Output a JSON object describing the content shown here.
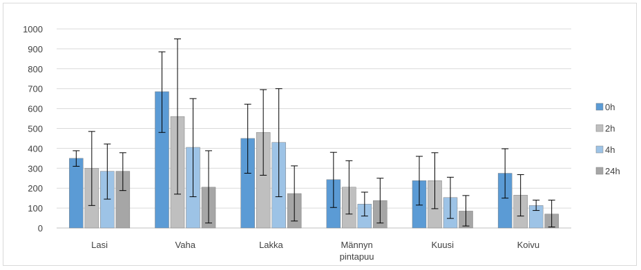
{
  "chart_data": {
    "type": "bar",
    "title": "",
    "xlabel": "",
    "ylabel": "",
    "ylim": [
      0,
      1000
    ],
    "yticks": [
      0,
      100,
      200,
      300,
      400,
      500,
      600,
      700,
      800,
      900,
      1000
    ],
    "grid": true,
    "legend_position": "right",
    "categories": [
      "Lasi",
      "Vaha",
      "Lakka",
      "Männyn pintapuu",
      "Kuusi",
      "Koivu"
    ],
    "series": [
      {
        "name": "0h",
        "color": "#5b9bd5",
        "values": [
          350,
          685,
          450,
          243,
          238,
          275
        ],
        "error_low": [
          310,
          480,
          275,
          103,
          115,
          150
        ],
        "error_high": [
          388,
          885,
          622,
          380,
          360,
          398
        ]
      },
      {
        "name": "2h",
        "color": "#bfbfbf",
        "values": [
          300,
          560,
          480,
          205,
          238,
          165
        ],
        "error_low": [
          113,
          170,
          265,
          70,
          97,
          60
        ],
        "error_high": [
          485,
          950,
          695,
          338,
          378,
          268
        ]
      },
      {
        "name": "4h",
        "color": "#9dc3e6",
        "values": [
          285,
          405,
          430,
          120,
          153,
          113
        ],
        "error_low": [
          145,
          157,
          157,
          60,
          48,
          88
        ],
        "error_high": [
          422,
          650,
          700,
          180,
          255,
          140
        ]
      },
      {
        "name": "24h",
        "color": "#a6a6a6",
        "values": [
          285,
          205,
          173,
          138,
          85,
          70
        ],
        "error_low": [
          188,
          25,
          35,
          25,
          10,
          5
        ],
        "error_high": [
          378,
          388,
          312,
          250,
          163,
          140
        ]
      }
    ]
  }
}
